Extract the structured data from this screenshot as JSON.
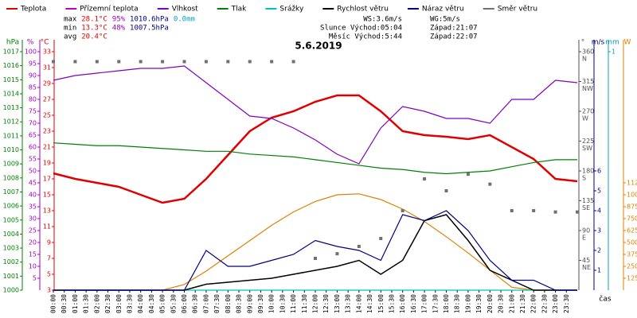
{
  "chart_data": {
    "type": "line",
    "title": "5.6.2019",
    "x_label": "čas",
    "xlim": [
      0,
      24
    ],
    "xticks": [
      {
        "value": 0,
        "label": "00:00"
      },
      {
        "value": 0.5,
        "label": "00:30"
      },
      {
        "value": 1,
        "label": "01:00"
      },
      {
        "value": 1.5,
        "label": "01:30"
      },
      {
        "value": 2,
        "label": "02:00"
      },
      {
        "value": 2.5,
        "label": "02:30"
      },
      {
        "value": 3,
        "label": "03:00"
      },
      {
        "value": 3.5,
        "label": "03:30"
      },
      {
        "value": 4,
        "label": "04:00"
      },
      {
        "value": 4.5,
        "label": "04:30"
      },
      {
        "value": 5,
        "label": "05:00"
      },
      {
        "value": 5.5,
        "label": "05:30"
      },
      {
        "value": 6,
        "label": "06:00"
      },
      {
        "value": 6.5,
        "label": "06:30"
      },
      {
        "value": 7,
        "label": "07:00"
      },
      {
        "value": 7.5,
        "label": "07:30"
      },
      {
        "value": 8,
        "label": "08:00"
      },
      {
        "value": 8.5,
        "label": "08:30"
      },
      {
        "value": 9,
        "label": "09:00"
      },
      {
        "value": 9.5,
        "label": "09:30"
      },
      {
        "value": 10,
        "label": "10:00"
      },
      {
        "value": 10.5,
        "label": "10:30"
      },
      {
        "value": 11,
        "label": "11:00"
      },
      {
        "value": 11.5,
        "label": "11:30"
      },
      {
        "value": 12,
        "label": "12:00"
      },
      {
        "value": 12.5,
        "label": "12:30"
      },
      {
        "value": 13,
        "label": "13:00"
      },
      {
        "value": 13.5,
        "label": "13:30"
      },
      {
        "value": 14,
        "label": "14:00"
      },
      {
        "value": 14.5,
        "label": "14:30"
      },
      {
        "value": 15,
        "label": "15:00"
      },
      {
        "value": 15.5,
        "label": "15:30"
      },
      {
        "value": 16,
        "label": "16:00"
      },
      {
        "value": 16.5,
        "label": "16:30"
      },
      {
        "value": 17,
        "label": "17:00"
      },
      {
        "value": 17.5,
        "label": "17:30"
      },
      {
        "value": 18,
        "label": "18:00"
      },
      {
        "value": 18.5,
        "label": "18:30"
      },
      {
        "value": 19,
        "label": "19:00"
      },
      {
        "value": 19.5,
        "label": "19:30"
      },
      {
        "value": 20,
        "label": "20:00"
      },
      {
        "value": 20.5,
        "label": "20:30"
      },
      {
        "value": 21,
        "label": "21:00"
      },
      {
        "value": 21.5,
        "label": "21:30"
      },
      {
        "value": 22,
        "label": "22:00"
      },
      {
        "value": 22.5,
        "label": "22:30"
      },
      {
        "value": 23,
        "label": "23:00"
      },
      {
        "value": 23.5,
        "label": "23:30"
      }
    ],
    "x": [
      0,
      1,
      2,
      3,
      4,
      5,
      6,
      7,
      8,
      9,
      10,
      11,
      12,
      13,
      14,
      15,
      16,
      17,
      18,
      19,
      20,
      21,
      22,
      23,
      24
    ],
    "axes": [
      {
        "label": "hPa",
        "side": "left",
        "color": "#008000",
        "lim": [
          1000,
          1017
        ],
        "ticks": [
          1000,
          1001,
          1002,
          1003,
          1004,
          1005,
          1006,
          1007,
          1008,
          1009,
          1010,
          1011,
          1012,
          1013,
          1014,
          1015,
          1016,
          1017
        ]
      },
      {
        "label": "%",
        "side": "left",
        "color": "#a000c0",
        "lim": [
          0,
          100
        ],
        "ticks": [
          5,
          10,
          15,
          20,
          25,
          30,
          35,
          40,
          45,
          50,
          55,
          60,
          65,
          70,
          75,
          80,
          85,
          90,
          95,
          100
        ]
      },
      {
        "label": "°C",
        "side": "left",
        "color": "#e00000",
        "lim": [
          3,
          33
        ],
        "ticks": [
          3,
          5,
          7,
          9,
          11,
          13,
          15,
          17,
          19,
          21,
          23,
          25,
          27,
          29,
          31,
          33
        ]
      },
      {
        "label": "°",
        "side": "right",
        "color": "#505050",
        "lim": [
          0,
          360
        ],
        "ticks": [
          45,
          90,
          135,
          180,
          225,
          270,
          315,
          360
        ],
        "compass": [
          "NE",
          "E",
          "SE",
          "S",
          "SW",
          "W",
          "NW",
          "N"
        ]
      },
      {
        "label": "m/s",
        "side": "right",
        "color": "#000080",
        "lim": [
          0,
          12
        ],
        "ticks": [
          1,
          2,
          3,
          4,
          5,
          6
        ]
      },
      {
        "label": "mm",
        "side": "right",
        "color": "#00a0c0",
        "lim": [
          0,
          1
        ],
        "ticks": [
          1
        ]
      },
      {
        "label": "W",
        "side": "right",
        "color": "#e08000",
        "lim": [
          0,
          2500
        ],
        "ticks": [
          125,
          250,
          375,
          500,
          625,
          750,
          875,
          1000,
          1125
        ]
      }
    ],
    "series": [
      {
        "name": "Teplota",
        "color": "#e00000",
        "axis": 2,
        "width": 2.5,
        "values": [
          17.7,
          17,
          16.5,
          16,
          15,
          14,
          14.5,
          17,
          20,
          23,
          24.7,
          25.5,
          26.7,
          27.5,
          27.5,
          25.5,
          23,
          22.5,
          22.3,
          22,
          22.5,
          21,
          19.5,
          17,
          16.7
        ]
      },
      {
        "name": "Přízemní teplota",
        "color": "#c000c0",
        "axis": 2,
        "values": [
          null,
          null,
          null,
          null,
          null,
          null,
          null,
          null,
          null,
          null,
          null,
          null,
          null,
          null,
          null,
          null,
          null,
          null,
          null,
          null,
          null,
          null,
          null,
          null,
          null
        ]
      },
      {
        "name": "Vlhkost",
        "color": "#8000c0",
        "axis": 1,
        "values": [
          88,
          90,
          91,
          92,
          93,
          93,
          94,
          87,
          80,
          73,
          72,
          68,
          63,
          57,
          53,
          68,
          77,
          75,
          72,
          72,
          70,
          80,
          80,
          88,
          87
        ]
      },
      {
        "name": "Tlak",
        "color": "#008000",
        "axis": 0,
        "values": [
          1010.5,
          1010.4,
          1010.3,
          1010.3,
          1010.2,
          1010.1,
          1010,
          1009.9,
          1009.9,
          1009.7,
          1009.6,
          1009.5,
          1009.3,
          1009.1,
          1008.9,
          1008.7,
          1008.6,
          1008.4,
          1008.3,
          1008.4,
          1008.5,
          1008.8,
          1009.1,
          1009.3,
          1009.3
        ]
      },
      {
        "name": "Srážky",
        "color": "#00c0c0",
        "axis": 5,
        "values": [
          0,
          0,
          0,
          0,
          0,
          0,
          0,
          0,
          0,
          0,
          0,
          0,
          0,
          0,
          0,
          0,
          0,
          0,
          0,
          0,
          0,
          0,
          0,
          0,
          0
        ]
      },
      {
        "name": "Rychlost větru",
        "color": "#000000",
        "axis": 4,
        "width": 1.5,
        "values": [
          0,
          0,
          0,
          0,
          0,
          0,
          0,
          0.3,
          0.4,
          0.5,
          0.6,
          0.8,
          1,
          1.2,
          1.5,
          0.8,
          1.5,
          3.5,
          3.8,
          2.5,
          1,
          0.5,
          0,
          0,
          0
        ]
      },
      {
        "name": "Náraz větru",
        "color": "#000080",
        "axis": 4,
        "values": [
          0,
          0,
          0,
          0,
          0,
          0,
          0,
          2,
          1.2,
          1.2,
          1.5,
          1.8,
          2.5,
          2.2,
          2,
          1.5,
          3.8,
          3.5,
          4,
          3,
          1.5,
          0.5,
          0.5,
          0,
          0
        ]
      },
      {
        "name": "Směr větru",
        "color": "#707070",
        "axis": 3,
        "style": "points",
        "values": [
          345,
          345,
          345,
          345,
          345,
          345,
          345,
          345,
          345,
          345,
          345,
          345,
          48,
          55,
          66,
          78,
          120,
          168,
          150,
          175,
          160,
          120,
          120,
          118,
          118
        ]
      }
    ],
    "solar": {
      "color": "#e08000",
      "axis": 6,
      "values": [
        0,
        0,
        0,
        0,
        0,
        0,
        60,
        200,
        360,
        520,
        680,
        820,
        930,
        1000,
        1010,
        950,
        850,
        720,
        560,
        390,
        210,
        30,
        0,
        0,
        0
      ]
    },
    "stats_colors": [
      "#000000",
      "#e00000",
      "#a000c0",
      "#000080",
      "#00a0c0"
    ],
    "stats": [
      [
        "max",
        "28.1°C",
        "95%",
        "1010.6hPa",
        "0.0mm"
      ],
      [
        "min",
        "13.3°C",
        "48%",
        "1007.5hPa"
      ],
      [
        "avg",
        "20.4°C"
      ]
    ],
    "info": [
      [
        "WS:3.6m/s",
        "WG:5m/s"
      ],
      [
        "Slunce Východ:05:04",
        "Západ:21:07"
      ],
      [
        "Měsíc Východ:5:44",
        "Západ:22:07"
      ]
    ]
  }
}
